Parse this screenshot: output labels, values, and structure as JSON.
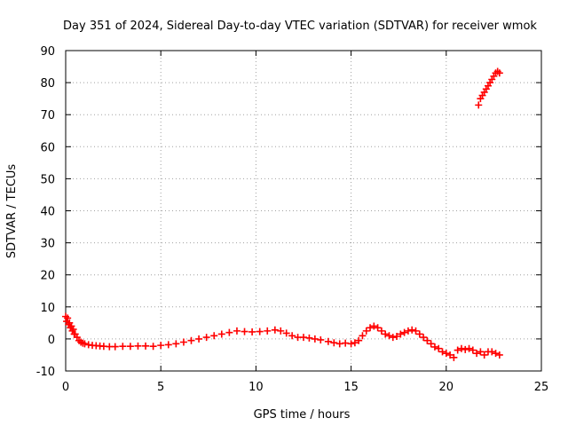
{
  "chart_data": {
    "type": "scatter",
    "title": "Day 351 of 2024, Sidereal Day-to-day VTEC variation (SDTVAR) for receiver wmok",
    "xlabel": "GPS time / hours",
    "ylabel": "SDTVAR / TECUs",
    "xlim": [
      0,
      25
    ],
    "ylim": [
      -10,
      90
    ],
    "xticks": [
      0,
      5,
      10,
      15,
      20,
      25
    ],
    "yticks": [
      -10,
      0,
      10,
      20,
      30,
      40,
      50,
      60,
      70,
      80,
      90
    ],
    "grid": true,
    "marker": "plus",
    "colors": {
      "series": "#ff0000",
      "grid": "#a0a0a0",
      "axis": "#000000"
    },
    "series": [
      {
        "name": "SDTVAR",
        "x": [
          0.0,
          0.05,
          0.1,
          0.15,
          0.2,
          0.25,
          0.3,
          0.35,
          0.4,
          0.45,
          0.5,
          0.6,
          0.7,
          0.8,
          0.9,
          1.0,
          1.2,
          1.4,
          1.6,
          1.8,
          2.0,
          2.3,
          2.6,
          3.0,
          3.4,
          3.8,
          4.2,
          4.6,
          5.0,
          5.4,
          5.8,
          6.2,
          6.6,
          7.0,
          7.4,
          7.8,
          8.2,
          8.6,
          9.0,
          9.4,
          9.8,
          10.2,
          10.6,
          11.0,
          11.3,
          11.6,
          11.9,
          12.2,
          12.5,
          12.8,
          13.1,
          13.4,
          13.8,
          14.1,
          14.4,
          14.7,
          15.0,
          15.2,
          15.4,
          15.6,
          15.8,
          16.0,
          16.2,
          16.4,
          16.6,
          16.8,
          17.0,
          17.2,
          17.4,
          17.6,
          17.8,
          18.0,
          18.2,
          18.4,
          18.6,
          18.8,
          19.0,
          19.2,
          19.4,
          19.6,
          19.8,
          20.0,
          20.2,
          20.4,
          20.6,
          20.8,
          21.0,
          21.2,
          21.4,
          21.6,
          21.8,
          22.0,
          22.2,
          22.4,
          22.6,
          22.8,
          21.7,
          21.8,
          21.9,
          22.0,
          22.1,
          22.2,
          22.3,
          22.4,
          22.5,
          22.6,
          22.7,
          22.8
        ],
        "y": [
          7.0,
          5.5,
          6.5,
          4.5,
          5.0,
          3.5,
          4.0,
          2.5,
          3.0,
          1.5,
          1.5,
          0.5,
          -0.5,
          -1.0,
          -1.3,
          -1.5,
          -1.8,
          -2.0,
          -2.1,
          -2.2,
          -2.3,
          -2.4,
          -2.4,
          -2.3,
          -2.3,
          -2.2,
          -2.2,
          -2.3,
          -2.0,
          -1.8,
          -1.5,
          -1.0,
          -0.5,
          0.0,
          0.5,
          1.0,
          1.5,
          2.0,
          2.5,
          2.3,
          2.2,
          2.3,
          2.5,
          2.8,
          2.5,
          1.8,
          1.0,
          0.5,
          0.5,
          0.3,
          0.0,
          -0.3,
          -0.8,
          -1.2,
          -1.5,
          -1.3,
          -1.5,
          -1.2,
          -0.5,
          1.0,
          2.5,
          3.5,
          4.0,
          3.5,
          2.5,
          1.5,
          1.0,
          0.5,
          0.8,
          1.5,
          2.0,
          2.5,
          2.8,
          2.5,
          1.5,
          0.5,
          -0.5,
          -1.5,
          -2.5,
          -3.0,
          -4.0,
          -4.5,
          -5.0,
          -5.8,
          -3.5,
          -3.0,
          -3.3,
          -3.0,
          -3.5,
          -4.5,
          -4.0,
          -5.0,
          -4.0,
          -4.0,
          -4.5,
          -5.0,
          73.0,
          75.0,
          76.0,
          77.0,
          78.0,
          79.0,
          80.0,
          81.0,
          82.0,
          83.0,
          83.5,
          83.0
        ]
      }
    ]
  }
}
